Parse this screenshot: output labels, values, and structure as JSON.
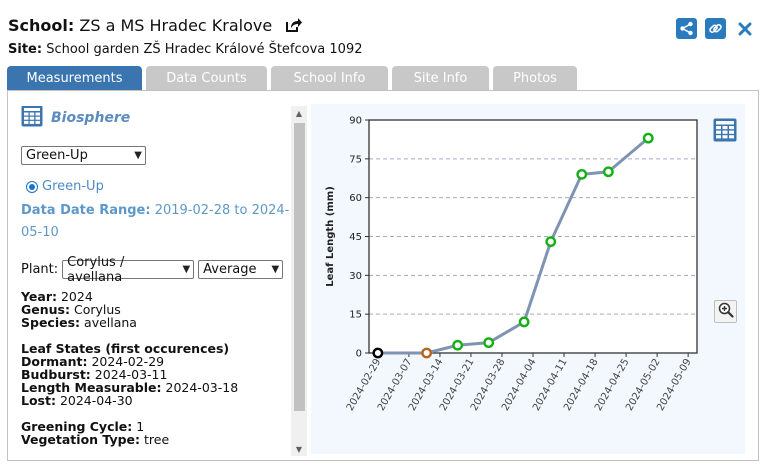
{
  "header": {
    "school_label": "School:",
    "school_name": "ZS a MS Hradec Kralove",
    "site_label": "Site:",
    "site_name": "School garden ZŠ Hradec Králové Štefcova 1092"
  },
  "tabs": [
    {
      "label": "Measurements",
      "active": true
    },
    {
      "label": "Data Counts",
      "active": false
    },
    {
      "label": "School Info",
      "active": false
    },
    {
      "label": "Site Info",
      "active": false
    },
    {
      "label": "Photos",
      "active": false
    }
  ],
  "left": {
    "protocol_title": "Biosphere",
    "protocol_select": "Green-Up",
    "radio_label": "Green-Up",
    "date_range_label": "Data Date Range:",
    "date_range_value_1": "2019-02-28 to 2024-",
    "date_range_value_2": "05-10",
    "plant_label": "Plant:",
    "plant_select": "Corylus / avellana",
    "agg_select": "Average",
    "year_label": "Year:",
    "year_value": "2024",
    "genus_label": "Genus:",
    "genus_value": "Corylus",
    "species_label": "Species:",
    "species_value": "avellana",
    "leaf_states_heading": "Leaf States (first occurences)",
    "dormant_label": "Dormant:",
    "dormant_value": "2024-02-29",
    "budburst_label": "Budburst:",
    "budburst_value": "2024-03-11",
    "length_label": "Length Measurable:",
    "length_value": "2024-03-18",
    "lost_label": "Lost:",
    "lost_value": "2024-04-30",
    "greening_label": "Greening Cycle:",
    "greening_value": "1",
    "vegetation_label": "Vegetation Type:",
    "vegetation_value": "tree"
  },
  "colors": {
    "accent": "#3a75b0",
    "point_green": "#12b012",
    "point_orange": "#b5651d",
    "point_black": "#000000",
    "line": "#7f93b3"
  },
  "chart_data": {
    "type": "line",
    "ylabel": "Leaf Length (mm)",
    "xlabel": "",
    "ylim": [
      0,
      90
    ],
    "yticks": [
      0,
      15,
      30,
      45,
      60,
      75,
      90
    ],
    "x_ticks": [
      "2024-02-29",
      "2024-03-07",
      "2024-03-14",
      "2024-03-21",
      "2024-03-28",
      "2024-04-04",
      "2024-04-11",
      "2024-04-18",
      "2024-04-25",
      "2024-05-02",
      "2024-05-09"
    ],
    "x_range": [
      "2024-02-27",
      "2024-05-11"
    ],
    "grid": "horizontal dashed",
    "points": [
      {
        "x": "2024-02-29",
        "y": 0,
        "color": "black"
      },
      {
        "x": "2024-03-11",
        "y": 0,
        "color": "orange"
      },
      {
        "x": "2024-03-18",
        "y": 3,
        "color": "green"
      },
      {
        "x": "2024-03-25",
        "y": 4,
        "color": "green"
      },
      {
        "x": "2024-04-02",
        "y": 12,
        "color": "green"
      },
      {
        "x": "2024-04-08",
        "y": 43,
        "color": "green"
      },
      {
        "x": "2024-04-15",
        "y": 69,
        "color": "green"
      },
      {
        "x": "2024-04-21",
        "y": 70,
        "color": "green"
      },
      {
        "x": "2024-04-30",
        "y": 83,
        "color": "green"
      }
    ]
  }
}
